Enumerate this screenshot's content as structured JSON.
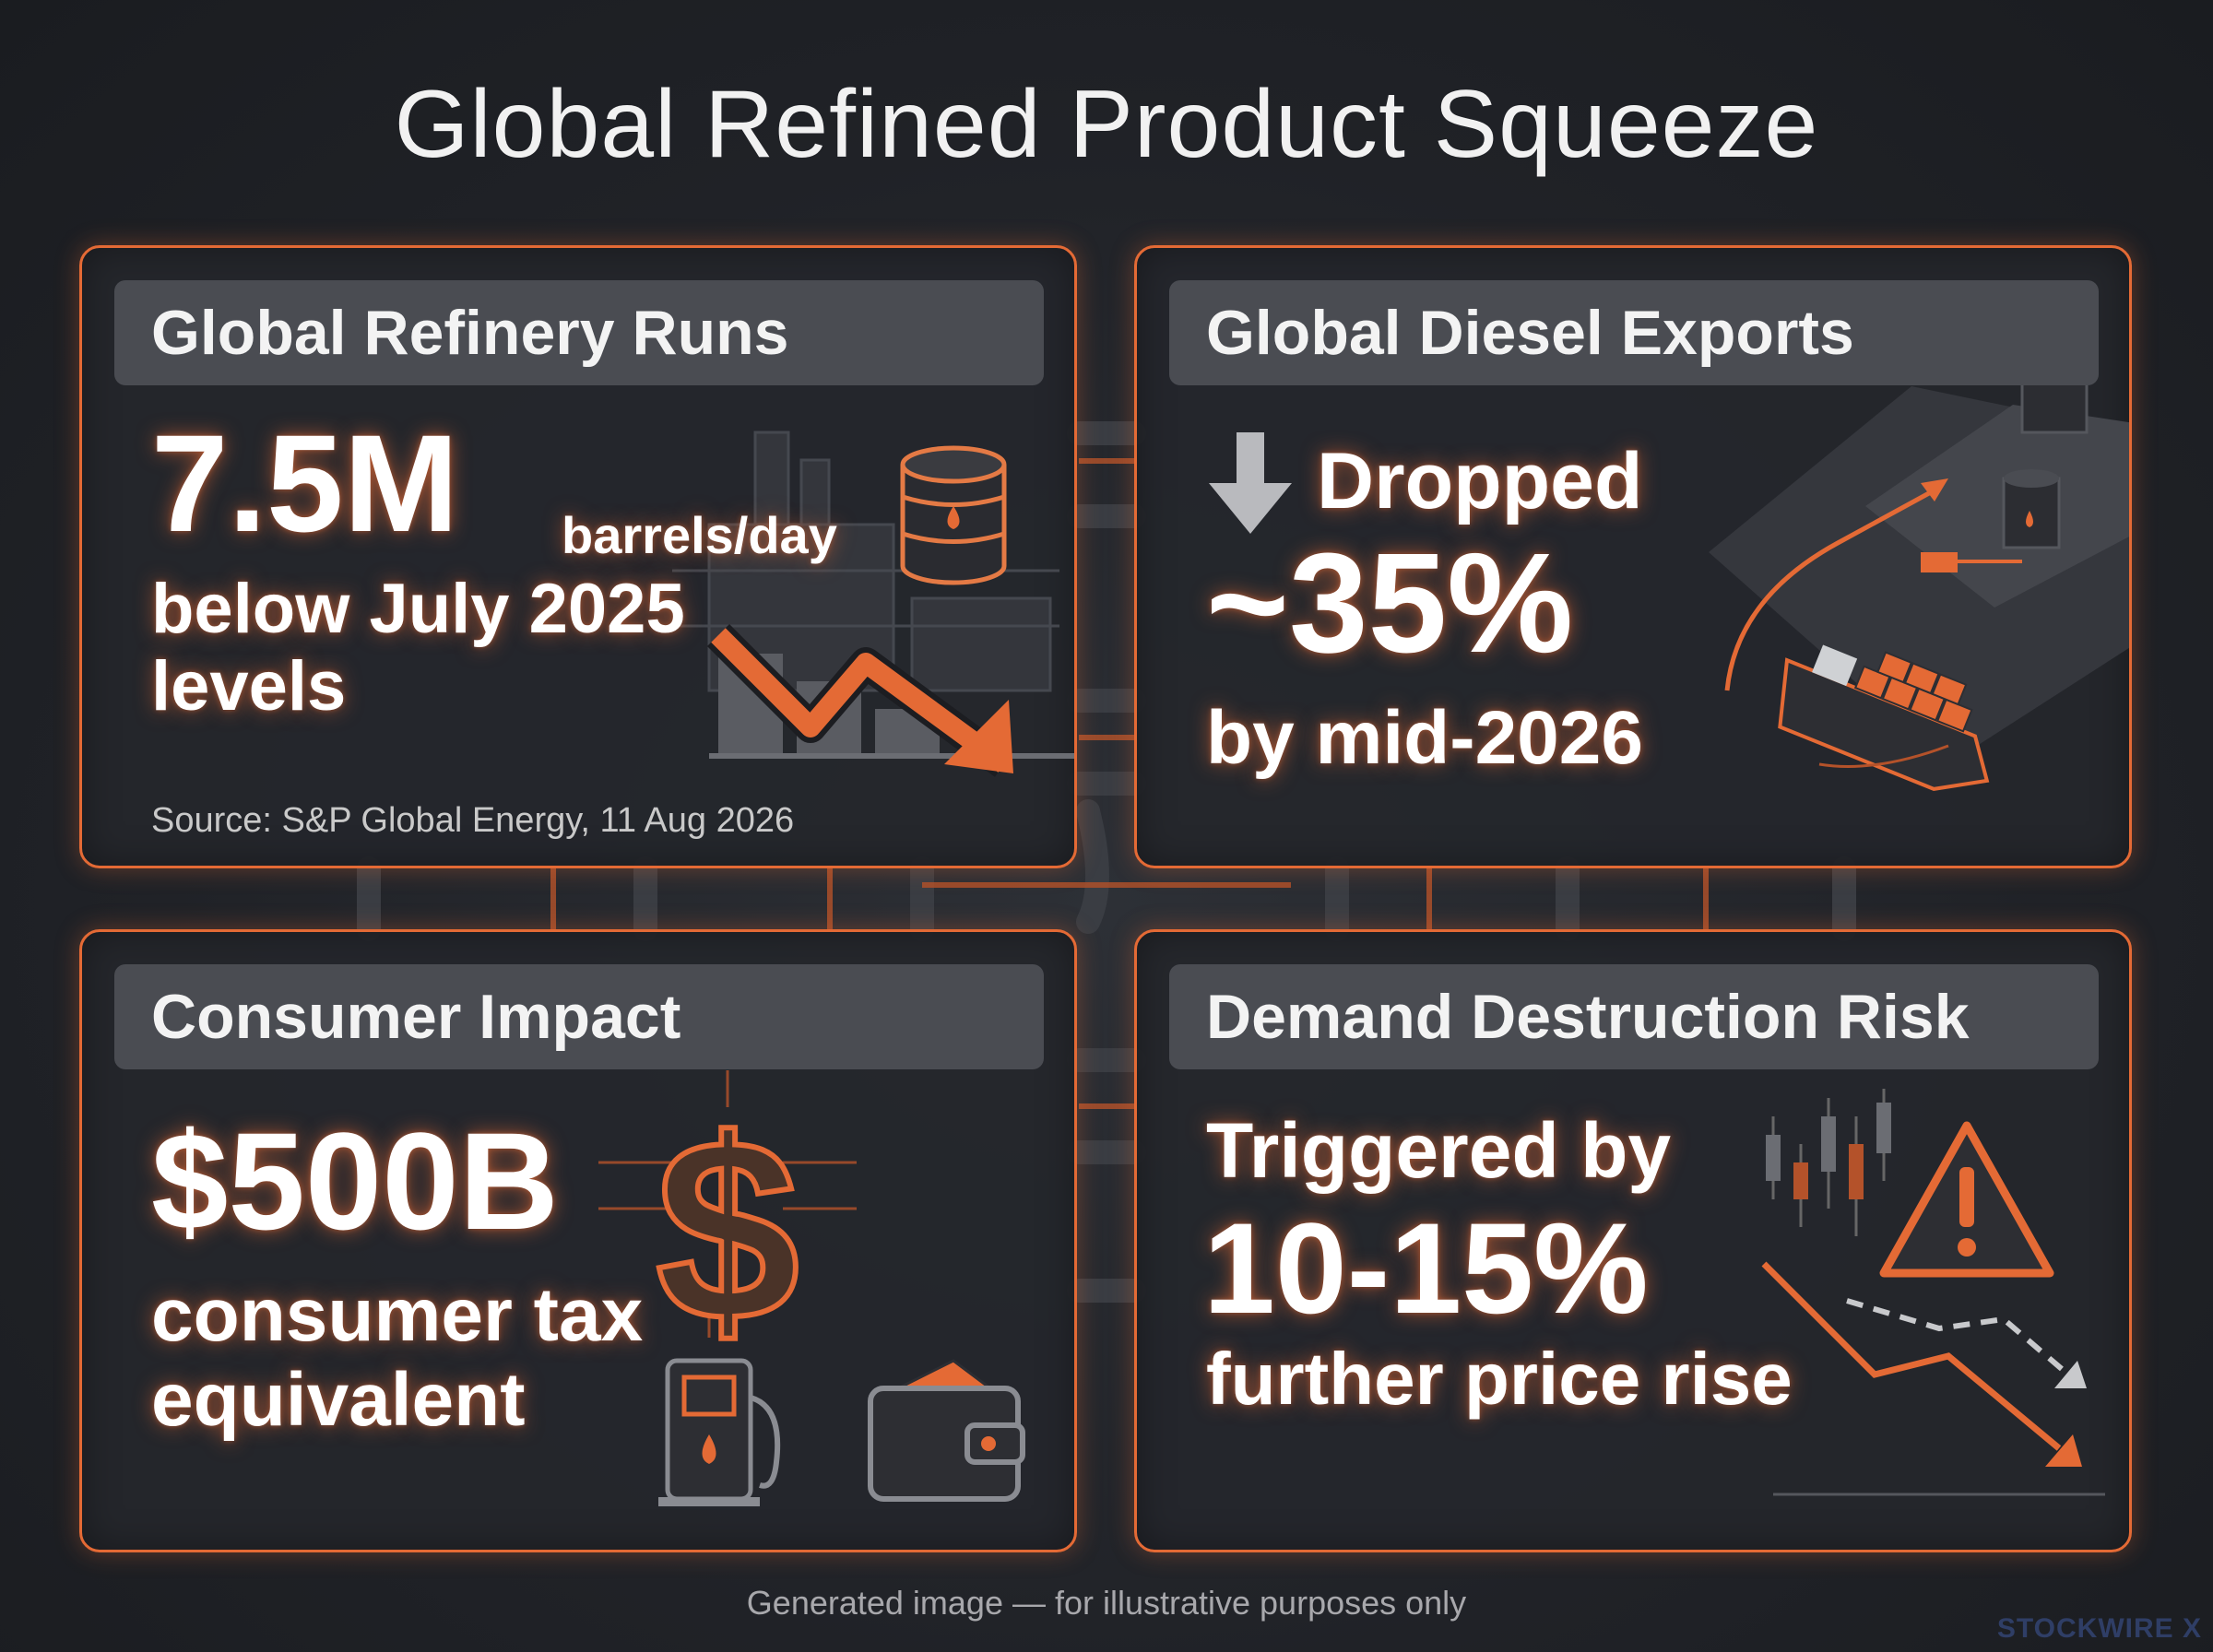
{
  "title": "Global Refined Product Squeeze",
  "colors": {
    "accent": "#e46a35",
    "background": "#202227",
    "header_bg": "#4a4c52"
  },
  "panels": {
    "refinery": {
      "header": "Global Refinery Runs",
      "value": "7.5M",
      "unit": "barrels/day",
      "line1": "below July 2025",
      "line2": "levels",
      "source": "Source: S&P Global Energy, 11 Aug 2026",
      "icons": [
        "oil-barrel-icon",
        "down-trend-arrow-icon",
        "refinery-icon"
      ]
    },
    "diesel": {
      "header": "Global Diesel Exports",
      "label": "Dropped",
      "value": "~35%",
      "subtext": "by mid-2026",
      "icons": [
        "down-arrow-icon",
        "tanker-ship-icon",
        "storage-tank-icon"
      ]
    },
    "consumer": {
      "header": "Consumer Impact",
      "value": "$500B",
      "line1": "consumer tax",
      "line2": "equivalent",
      "icons": [
        "dollar-sign-icon",
        "fuel-pump-icon",
        "wallet-icon"
      ]
    },
    "demand": {
      "header": "Demand Destruction Risk",
      "line1": "Triggered by",
      "value": "10-15%",
      "line2": "further price rise",
      "icons": [
        "warning-triangle-icon",
        "candlestick-chart-icon",
        "down-trend-arrow-icon"
      ]
    }
  },
  "footer": "Generated image — for illustrative purposes only",
  "watermark": "STOCKWIRE X"
}
